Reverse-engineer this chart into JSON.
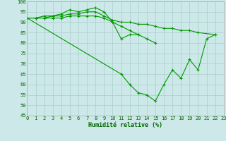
{
  "xlabel": "Humidité relative (%)",
  "background_color": "#cce8e8",
  "grid_color": "#aacccc",
  "line_color": "#009900",
  "xlim": [
    0,
    23
  ],
  "ylim": [
    45,
    100
  ],
  "yticks": [
    45,
    50,
    55,
    60,
    65,
    70,
    75,
    80,
    85,
    90,
    95,
    100
  ],
  "xticks": [
    0,
    1,
    2,
    3,
    4,
    5,
    6,
    7,
    8,
    9,
    10,
    11,
    12,
    13,
    14,
    15,
    16,
    17,
    18,
    19,
    20,
    21,
    22,
    23
  ],
  "series": [
    {
      "x": [
        0,
        1,
        2,
        3,
        4,
        5,
        6,
        7,
        8,
        9,
        10,
        11,
        12,
        13
      ],
      "y": [
        92,
        92,
        93,
        93,
        94,
        96,
        95,
        96,
        97,
        95,
        90,
        82,
        84,
        84
      ]
    },
    {
      "x": [
        0,
        1,
        2,
        3,
        4,
        5,
        6,
        7,
        8,
        9,
        10,
        11,
        12,
        13,
        14,
        15,
        16,
        17,
        18,
        19,
        20,
        22
      ],
      "y": [
        92,
        92,
        92,
        93,
        93,
        94,
        94,
        95,
        95,
        93,
        91,
        90,
        90,
        89,
        89,
        88,
        87,
        87,
        86,
        86,
        85,
        84
      ]
    },
    {
      "x": [
        0,
        1,
        2,
        3,
        4,
        5,
        6,
        7,
        8,
        9,
        10,
        11,
        12,
        13,
        14,
        15
      ],
      "y": [
        92,
        92,
        92,
        92,
        92,
        93,
        93,
        93,
        93,
        92,
        90,
        88,
        86,
        84,
        82,
        80
      ]
    },
    {
      "x": [
        0,
        11,
        12,
        13,
        14,
        15,
        16,
        17,
        18,
        19,
        20,
        21,
        22
      ],
      "y": [
        92,
        65,
        60,
        56,
        55,
        52,
        60,
        67,
        63,
        72,
        67,
        82,
        84
      ]
    }
  ]
}
